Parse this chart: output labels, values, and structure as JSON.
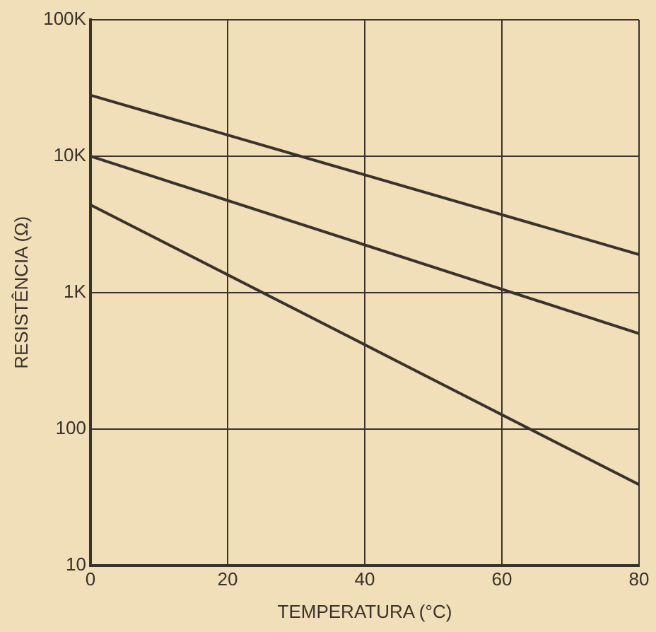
{
  "chart_data": {
    "type": "line",
    "xlabel": "TEMPERATURA (°C)",
    "ylabel": "RESISTÊNCIA (Ω)",
    "x": [
      0,
      80
    ],
    "series": [
      {
        "color": "#3a332c",
        "values": [
          28000,
          1900
        ]
      },
      {
        "color": "#3a332c",
        "values": [
          10000,
          500
        ]
      },
      {
        "color": "#3a332c",
        "values": [
          4400,
          39
        ]
      }
    ],
    "xlim": [
      0,
      80
    ],
    "xticks": [
      0,
      20,
      40,
      60,
      80
    ],
    "ylim": [
      10,
      100000
    ],
    "yticks": [
      {
        "value": 10,
        "label": "10"
      },
      {
        "value": 100,
        "label": "100"
      },
      {
        "value": 1000,
        "label": "1K"
      },
      {
        "value": 10000,
        "label": "10K"
      },
      {
        "value": 100000,
        "label": "100K"
      }
    ],
    "log": "y",
    "grid": true,
    "marker": "none",
    "line_style": "solid"
  }
}
